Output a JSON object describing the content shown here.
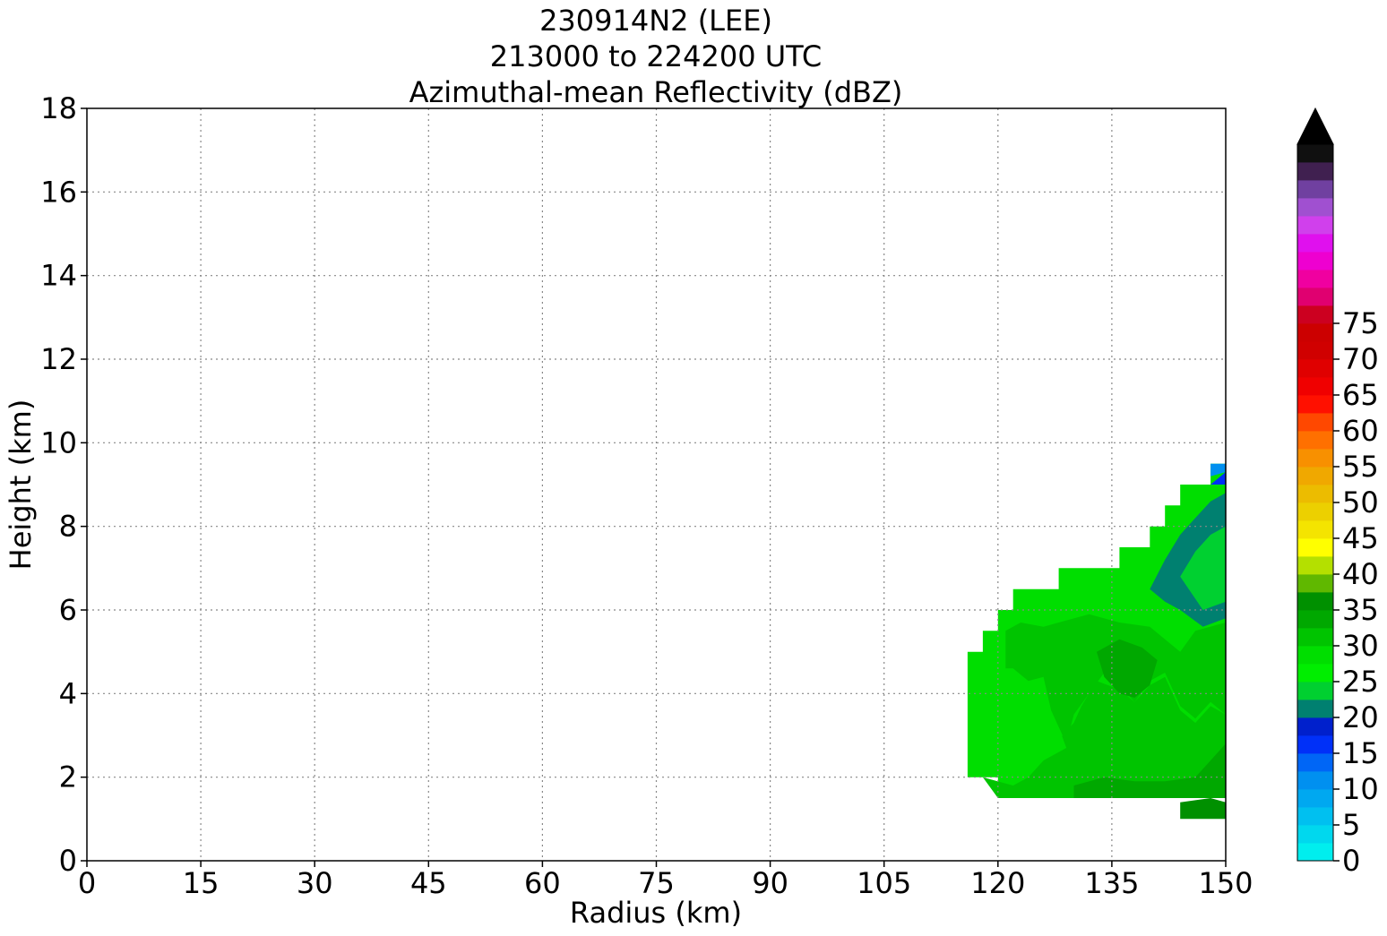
{
  "chart_data": {
    "type": "heatmap",
    "title_lines": [
      "230914N2 (LEE)",
      "213000 to 224200 UTC",
      "Azimuthal-mean Reflectivity (dBZ)"
    ],
    "xlabel": "Radius (km)",
    "ylabel": "Height (km)",
    "xlim": [
      0,
      150
    ],
    "ylim": [
      0,
      18
    ],
    "xticks": [
      0,
      15,
      30,
      45,
      60,
      75,
      90,
      105,
      120,
      135,
      150
    ],
    "yticks": [
      0,
      2,
      4,
      6,
      8,
      10,
      12,
      14,
      16,
      18
    ],
    "grid": true,
    "colorbar": {
      "label_ticks": [
        0,
        5,
        10,
        15,
        20,
        25,
        30,
        35,
        40,
        45,
        50,
        55,
        60,
        65,
        70,
        75
      ],
      "level_step": 2.5,
      "extend": "max",
      "extend_color": "#000000",
      "colors": [
        "#00eeee",
        "#00d8ee",
        "#00c0f0",
        "#00a8f0",
        "#0090f0",
        "#0066f6",
        "#0030f8",
        "#0020cc",
        "#008070",
        "#00d030",
        "#00ee00",
        "#00de00",
        "#00c400",
        "#00a800",
        "#009000",
        "#60b800",
        "#b4e000",
        "#ffff00",
        "#f4e400",
        "#ecd000",
        "#ecbc00",
        "#f0a800",
        "#f89000",
        "#ff7000",
        "#ff4800",
        "#ff1000",
        "#f00000",
        "#e00000",
        "#d00000",
        "#cc0000",
        "#cc0020",
        "#e00070",
        "#f000a0",
        "#ee00d0",
        "#e010ee",
        "#d040ec",
        "#a050d0",
        "#7040a0",
        "#402050",
        "#101010"
      ]
    },
    "region_fill_levels_dbz": {
      "outer_edge": 27.5,
      "mid_band": 25,
      "dark_band": 27.5,
      "core": 30,
      "inner_core": 32.5,
      "bright_core": 35,
      "upper_green": 20,
      "upper_core": 22.5,
      "top_teal": 15,
      "top_blue": 10
    },
    "regions": [
      {
        "name": "main-echo-outer",
        "level": "outer_edge",
        "points": [
          [
            116,
            2
          ],
          [
            116,
            5
          ],
          [
            118,
            5
          ],
          [
            118,
            5.5
          ],
          [
            120,
            5.5
          ],
          [
            120,
            6
          ],
          [
            122,
            6
          ],
          [
            122,
            6.5
          ],
          [
            128,
            6.5
          ],
          [
            128,
            7
          ],
          [
            136,
            7
          ],
          [
            136,
            7.5
          ],
          [
            140,
            7.5
          ],
          [
            140,
            8
          ],
          [
            142,
            8
          ],
          [
            142,
            8.5
          ],
          [
            144,
            8.5
          ],
          [
            144,
            9
          ],
          [
            148,
            9
          ],
          [
            148,
            9.5
          ],
          [
            150,
            9.5
          ],
          [
            150,
            1.5
          ],
          [
            120,
            1.5
          ],
          [
            120,
            2
          ]
        ]
      },
      {
        "name": "main-echo-core",
        "level": "core",
        "points": [
          [
            118,
            2
          ],
          [
            120,
            1.5
          ],
          [
            150,
            1.5
          ],
          [
            150,
            3.5
          ],
          [
            148,
            3.7
          ],
          [
            146,
            3.3
          ],
          [
            144,
            3.6
          ],
          [
            142,
            4.4
          ],
          [
            140,
            4.2
          ],
          [
            138,
            3.8
          ],
          [
            136,
            4.1
          ],
          [
            133,
            4.3
          ],
          [
            131,
            3.7
          ],
          [
            130,
            3.3
          ],
          [
            128,
            2.9
          ],
          [
            126,
            2.4
          ],
          [
            124,
            2.0
          ],
          [
            122,
            1.8
          ]
        ]
      },
      {
        "name": "dark-band",
        "level": "dark_band",
        "points": [
          [
            120,
            2
          ],
          [
            120,
            4
          ],
          [
            122,
            4.6
          ],
          [
            124,
            4.2
          ],
          [
            126,
            4.4
          ],
          [
            127,
            3.7
          ],
          [
            129,
            2.7
          ],
          [
            126,
            2.4
          ],
          [
            124,
            2.1
          ],
          [
            122,
            1.9
          ]
        ]
      },
      {
        "name": "mid-band",
        "level": "core",
        "points": [
          [
            121,
            4.6
          ],
          [
            121,
            5.5
          ],
          [
            123,
            5.7
          ],
          [
            126,
            5.6
          ],
          [
            128,
            5.7
          ],
          [
            132,
            5.9
          ],
          [
            136,
            5.7
          ],
          [
            140,
            5.6
          ],
          [
            142,
            5.3
          ],
          [
            144,
            5.0
          ],
          [
            146,
            5.5
          ],
          [
            150,
            5.7
          ],
          [
            150,
            3.5
          ],
          [
            148,
            3.8
          ],
          [
            146,
            3.4
          ],
          [
            144,
            3.7
          ],
          [
            142,
            4.5
          ],
          [
            140,
            4.3
          ],
          [
            138,
            3.8
          ],
          [
            136,
            4.2
          ],
          [
            134,
            4.5
          ],
          [
            132,
            4.0
          ],
          [
            130,
            3.5
          ],
          [
            129,
            2.8
          ],
          [
            127,
            3.6
          ],
          [
            126,
            4.4
          ],
          [
            124,
            4.3
          ],
          [
            122,
            4.6
          ]
        ]
      },
      {
        "name": "core-highlight",
        "level": "inner_core",
        "points": [
          [
            133,
            5.0
          ],
          [
            136,
            5.3
          ],
          [
            139,
            5.1
          ],
          [
            141,
            4.8
          ],
          [
            140,
            4.2
          ],
          [
            138,
            3.9
          ],
          [
            136,
            4.0
          ],
          [
            134,
            4.4
          ]
        ]
      },
      {
        "name": "bottom-core",
        "level": "inner_core",
        "points": [
          [
            130,
            1.5
          ],
          [
            130,
            1.8
          ],
          [
            134,
            2.0
          ],
          [
            138,
            1.9
          ],
          [
            142,
            1.9
          ],
          [
            146,
            2.0
          ],
          [
            148,
            2.4
          ],
          [
            150,
            2.8
          ],
          [
            150,
            1.5
          ]
        ]
      },
      {
        "name": "bright-base",
        "level": "bright_core",
        "points": [
          [
            144,
            1.0
          ],
          [
            144,
            1.4
          ],
          [
            148,
            1.5
          ],
          [
            150,
            1.4
          ],
          [
            150,
            1.0
          ]
        ]
      },
      {
        "name": "upper-green",
        "level": "upper_green",
        "points": [
          [
            140,
            6.5
          ],
          [
            142,
            7.2
          ],
          [
            144,
            7.8
          ],
          [
            146,
            8.2
          ],
          [
            148,
            8.6
          ],
          [
            150,
            8.8
          ],
          [
            150,
            5.8
          ],
          [
            147,
            5.6
          ],
          [
            144,
            6.0
          ],
          [
            142,
            6.2
          ]
        ]
      },
      {
        "name": "upper-core",
        "level": "upper_core",
        "points": [
          [
            144,
            6.8
          ],
          [
            146,
            7.4
          ],
          [
            148,
            7.8
          ],
          [
            150,
            8.0
          ],
          [
            150,
            6.2
          ],
          [
            147,
            6.0
          ]
        ]
      },
      {
        "name": "top-teal",
        "level": "top_teal",
        "points": [
          [
            148,
            9.0
          ],
          [
            150,
            9.3
          ],
          [
            150,
            9.0
          ]
        ]
      },
      {
        "name": "top-blue",
        "level": "top_blue",
        "points": [
          [
            148,
            9.2
          ],
          [
            148,
            9.5
          ],
          [
            150,
            9.5
          ],
          [
            150,
            9.3
          ]
        ]
      }
    ]
  }
}
